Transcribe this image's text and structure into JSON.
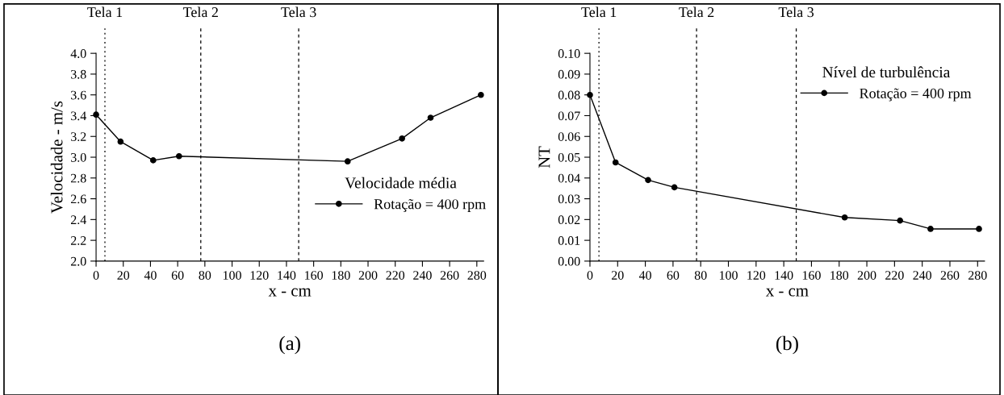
{
  "chart_data": [
    {
      "type": "line",
      "xlabel": "x - cm",
      "ylabel": "Velocidade - m/s",
      "legend_title": "Velocidade média",
      "legend": "right",
      "x": [
        0,
        18,
        42,
        61,
        185,
        225,
        246,
        283
      ],
      "series": [
        {
          "name": "Rotação = 400 rpm",
          "color": "#000000",
          "values": [
            3.41,
            3.15,
            2.97,
            3.01,
            2.96,
            3.18,
            3.38,
            3.6
          ]
        }
      ],
      "marker": "circle",
      "line_style": "solid",
      "xlim": [
        0,
        285
      ],
      "xticks": [
        0,
        20,
        40,
        60,
        80,
        100,
        120,
        140,
        160,
        180,
        200,
        220,
        240,
        260,
        280
      ],
      "ylim": [
        2.0,
        4.0
      ],
      "yticks": [
        {
          "value": 2.0,
          "label": "2.0"
        },
        2.2,
        2.4,
        2.6,
        2.8,
        {
          "value": 3.0,
          "label": "3.0"
        },
        3.2,
        3.4,
        3.6,
        3.8,
        {
          "value": 4.0,
          "label": "4.0"
        }
      ],
      "ref_lines": [
        {
          "axis": "x",
          "value": 6.5,
          "label": "Tela 1",
          "line_style": "dotted",
          "color": "#000000"
        },
        {
          "axis": "x",
          "value": 77,
          "label": "Tela 2",
          "line_style": "dashed",
          "color": "#000000"
        },
        {
          "axis": "x",
          "value": 149,
          "label": "Tela 3",
          "line_style": "dashed",
          "color": "#000000"
        }
      ],
      "annotations": [
        "(a)"
      ]
    },
    {
      "type": "line",
      "xlabel": "x - cm",
      "ylabel": "NT",
      "legend_title": "Nível de turbulência",
      "legend": "top right",
      "x": [
        0,
        18.5,
        42,
        61,
        184,
        224,
        246,
        281
      ],
      "series": [
        {
          "name": "Rotação = 400 rpm",
          "color": "#000000",
          "values": [
            0.08,
            0.0475,
            0.039,
            0.0355,
            0.021,
            0.0195,
            0.0155,
            0.0155
          ]
        }
      ],
      "marker": "circle",
      "line_style": "solid",
      "xlim": [
        0,
        285
      ],
      "xticks": [
        0,
        20,
        40,
        60,
        80,
        100,
        120,
        140,
        160,
        180,
        200,
        220,
        240,
        260,
        280
      ],
      "ylim": [
        0.0,
        0.1
      ],
      "yticks": [
        {
          "value": 0.0,
          "label": "0.00"
        },
        {
          "value": 0.01,
          "label": "0.01"
        },
        {
          "value": 0.02,
          "label": "0.02"
        },
        {
          "value": 0.03,
          "label": "0.03"
        },
        {
          "value": 0.04,
          "label": "0.04"
        },
        {
          "value": 0.05,
          "label": "0.05"
        },
        {
          "value": 0.06,
          "label": "0.06"
        },
        {
          "value": 0.07,
          "label": "0.07"
        },
        {
          "value": 0.08,
          "label": "0.08"
        },
        {
          "value": 0.09,
          "label": "0.09"
        },
        {
          "value": 0.1,
          "label": "0.10"
        }
      ],
      "ref_lines": [
        {
          "axis": "x",
          "value": 6.5,
          "label": "Tela 1",
          "line_style": "dotted",
          "color": "#000000"
        },
        {
          "axis": "x",
          "value": 77,
          "label": "Tela 2",
          "line_style": "dashed",
          "color": "#000000"
        },
        {
          "axis": "x",
          "value": 149,
          "label": "Tela 3",
          "line_style": "dashed",
          "color": "#000000"
        }
      ],
      "annotations": [
        "(b)"
      ]
    }
  ]
}
